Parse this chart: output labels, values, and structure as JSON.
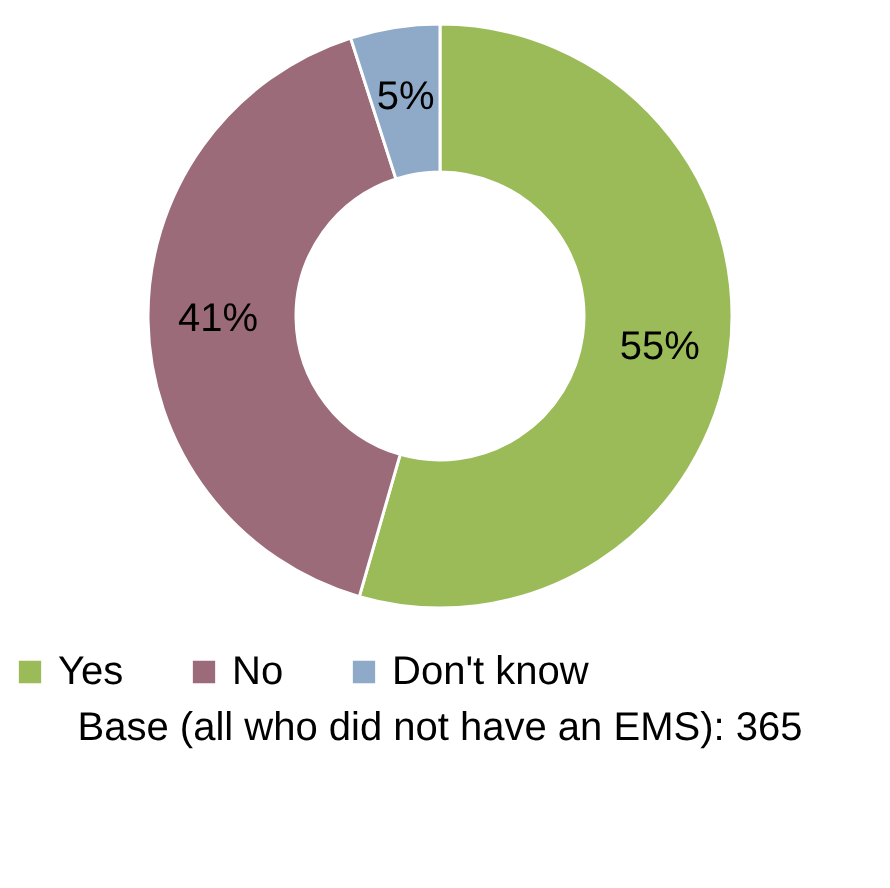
{
  "chart_data": {
    "type": "donut",
    "categories": [
      "Yes",
      "No",
      "Don't know"
    ],
    "values": [
      55,
      41,
      5
    ],
    "colors": [
      "#9bbb59",
      "#9b6b79",
      "#8eaac8"
    ],
    "value_labels": [
      "55%",
      "41%",
      "5%"
    ],
    "legend": "bottom",
    "annotations": [
      "Base (all who did not have an EMS): 365"
    ]
  }
}
